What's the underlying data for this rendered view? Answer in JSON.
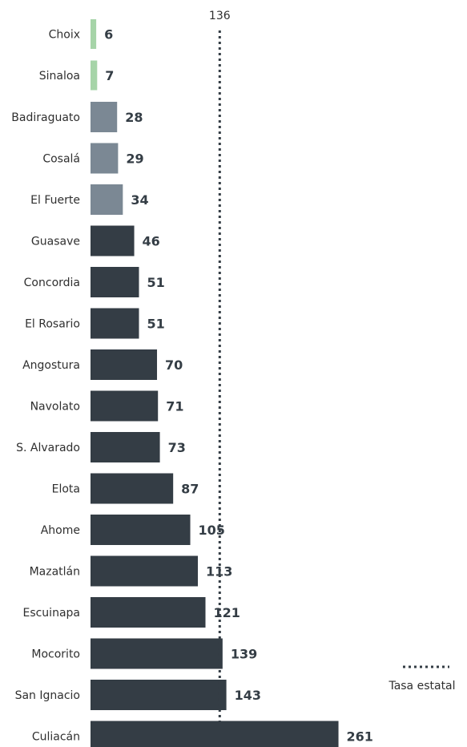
{
  "chart_data": {
    "type": "bar",
    "orientation": "horizontal",
    "categories": [
      "Choix",
      "Sinaloa",
      "Badiraguato",
      "Cosalá",
      "El Fuerte",
      "Guasave",
      "Concordia",
      "El Rosario",
      "Angostura",
      "Navolato",
      "S. Alvarado",
      "Elota",
      "Ahome",
      "Mazatlán",
      "Escuinapa",
      "Mocorito",
      "San Ignacio",
      "Culiacán"
    ],
    "values": [
      6,
      7,
      28,
      29,
      34,
      46,
      51,
      51,
      70,
      71,
      73,
      87,
      105,
      113,
      121,
      139,
      143,
      261
    ],
    "value_labels": [
      "6",
      "7",
      "28",
      "29",
      "34",
      "46",
      "51",
      "51",
      "70",
      "71",
      "73",
      "87",
      "105",
      "113",
      "121",
      "139",
      "143",
      "261"
    ],
    "colors": {
      "low": "#a6d4a8",
      "mid": "#7b8894",
      "high": "#343d45"
    },
    "bar_color_group": [
      "low",
      "low",
      "mid",
      "mid",
      "mid",
      "high",
      "high",
      "high",
      "high",
      "high",
      "high",
      "high",
      "high",
      "high",
      "high",
      "high",
      "high",
      "high"
    ],
    "reference_line": {
      "value": 136,
      "label": "136",
      "style": "dotted"
    },
    "legend": {
      "label": "Tasa estatal",
      "position": "right"
    },
    "xlim": [
      0,
      261
    ],
    "grid": false
  }
}
